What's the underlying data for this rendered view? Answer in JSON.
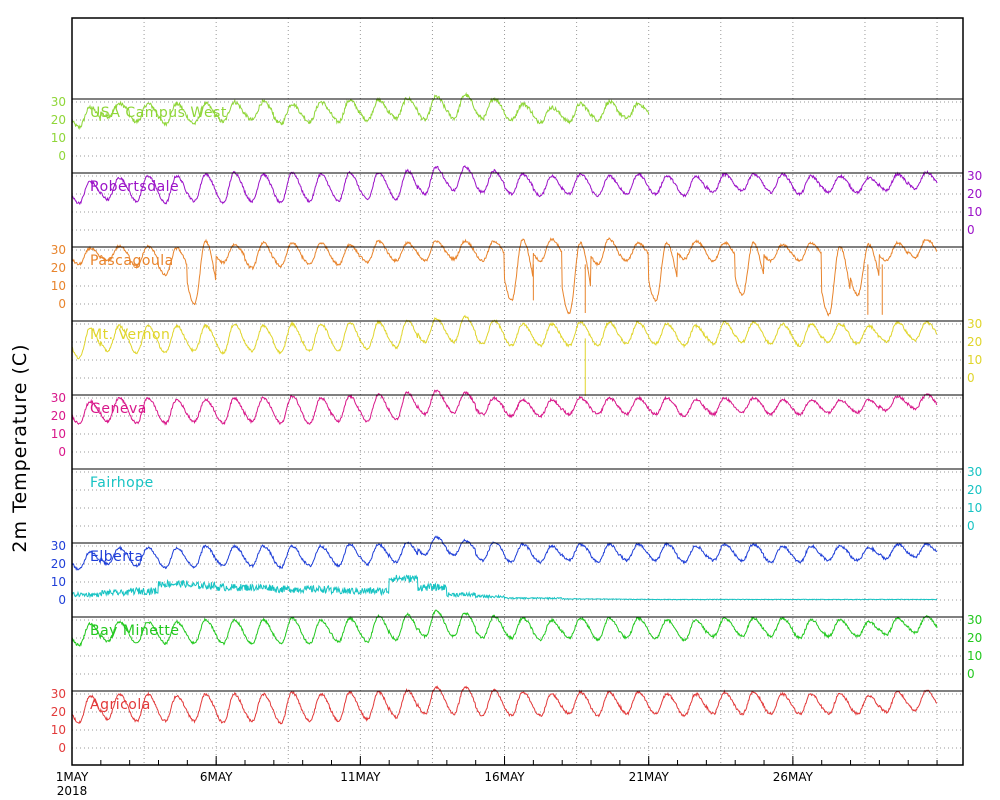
{
  "chart_data": {
    "type": "line",
    "ylabel": "2m Temperature (C)",
    "x_start": "2018-05-01",
    "x_end": "2018-05-31",
    "x_ticks": [
      {
        "date": "2018-05-01",
        "label": "1MAY",
        "sublabel": "2018"
      },
      {
        "date": "2018-05-06",
        "label": "6MAY",
        "sublabel": ""
      },
      {
        "date": "2018-05-11",
        "label": "11MAY",
        "sublabel": ""
      },
      {
        "date": "2018-05-16",
        "label": "16MAY",
        "sublabel": ""
      },
      {
        "date": "2018-05-21",
        "label": "21MAY",
        "sublabel": ""
      },
      {
        "date": "2018-05-26",
        "label": "26MAY",
        "sublabel": ""
      }
    ],
    "y_ticks": [
      0,
      10,
      20,
      30
    ],
    "grid": true,
    "panels": [
      {
        "name": "USA Campus West",
        "color": "#8fd638",
        "axis_side": "left",
        "data_end": "2018-05-21",
        "data_rough": true,
        "daily": [
          [
            16,
            27
          ],
          [
            22,
            29
          ],
          [
            19,
            29
          ],
          [
            18,
            29
          ],
          [
            18,
            29
          ],
          [
            19,
            30
          ],
          [
            20,
            30
          ],
          [
            18,
            29
          ],
          [
            19,
            30
          ],
          [
            19,
            31
          ],
          [
            20,
            31
          ],
          [
            21,
            32
          ],
          [
            20,
            33
          ],
          [
            21,
            34
          ],
          [
            21,
            32
          ],
          [
            20,
            29
          ],
          [
            19,
            27
          ],
          [
            19,
            29
          ],
          [
            20,
            30
          ],
          [
            21,
            29
          ],
          [
            21,
            30
          ]
        ]
      },
      {
        "name": "Robertsdale",
        "color": "#9b12c8",
        "axis_side": "right",
        "data_end": "2018-05-31",
        "daily": [
          [
            15,
            27
          ],
          [
            17,
            29
          ],
          [
            16,
            30
          ],
          [
            15,
            30
          ],
          [
            16,
            31
          ],
          [
            15,
            32
          ],
          [
            16,
            31
          ],
          [
            15,
            32
          ],
          [
            16,
            31
          ],
          [
            16,
            32
          ],
          [
            17,
            32
          ],
          [
            17,
            33
          ],
          [
            20,
            35
          ],
          [
            22,
            35
          ],
          [
            21,
            33
          ],
          [
            20,
            31
          ],
          [
            19,
            30
          ],
          [
            20,
            31
          ],
          [
            19,
            30
          ],
          [
            20,
            31
          ],
          [
            20,
            30
          ],
          [
            19,
            30
          ],
          [
            21,
            31
          ],
          [
            22,
            31
          ],
          [
            21,
            31
          ],
          [
            20,
            30
          ],
          [
            21,
            30
          ],
          [
            21,
            29
          ],
          [
            22,
            31
          ],
          [
            23,
            32
          ]
        ]
      },
      {
        "name": "Pascagoula",
        "color": "#e8842c",
        "axis_side": "left",
        "data_end": "2018-05-31",
        "daily": [
          [
            22,
            31
          ],
          [
            24,
            32
          ],
          [
            21,
            32
          ],
          [
            16,
            31
          ],
          [
            0,
            35
          ],
          [
            23,
            33
          ],
          [
            20,
            34
          ],
          [
            21,
            34
          ],
          [
            22,
            34
          ],
          [
            22,
            33
          ],
          [
            23,
            35
          ],
          [
            24,
            34
          ],
          [
            24,
            35
          ],
          [
            25,
            35
          ],
          [
            24,
            35
          ],
          [
            2,
            36
          ],
          [
            24,
            36
          ],
          [
            -5,
            34
          ],
          [
            22,
            36
          ],
          [
            24,
            34
          ],
          [
            2,
            34
          ],
          [
            25,
            35
          ],
          [
            24,
            34
          ],
          [
            5,
            34
          ],
          [
            24,
            33
          ],
          [
            24,
            34
          ],
          [
            -6,
            32
          ],
          [
            5,
            33
          ],
          [
            24,
            34
          ],
          [
            26,
            36
          ]
        ],
        "spikes": [
          {
            "day": 28.1,
            "value": -6
          },
          {
            "day": 27.6,
            "value": -6
          },
          {
            "day": 16.0,
            "value": 2
          },
          {
            "day": 17.8,
            "value": -5
          }
        ]
      },
      {
        "name": "Mt. Vernon",
        "color": "#e0d52c",
        "axis_side": "right",
        "data_end": "2018-05-31",
        "daily": [
          [
            11,
            28
          ],
          [
            15,
            29
          ],
          [
            14,
            29
          ],
          [
            14,
            29
          ],
          [
            15,
            29
          ],
          [
            14,
            30
          ],
          [
            15,
            29
          ],
          [
            14,
            30
          ],
          [
            15,
            30
          ],
          [
            15,
            31
          ],
          [
            16,
            31
          ],
          [
            17,
            32
          ],
          [
            20,
            33
          ],
          [
            20,
            34
          ],
          [
            19,
            32
          ],
          [
            18,
            30
          ],
          [
            18,
            30
          ],
          [
            18,
            31
          ],
          [
            18,
            31
          ],
          [
            19,
            31
          ],
          [
            19,
            30
          ],
          [
            18,
            29
          ],
          [
            19,
            31
          ],
          [
            20,
            31
          ],
          [
            19,
            30
          ],
          [
            18,
            30
          ],
          [
            20,
            30
          ],
          [
            19,
            29
          ],
          [
            20,
            31
          ],
          [
            21,
            31
          ]
        ],
        "spikes": [
          {
            "day": 17.8,
            "value": -10
          }
        ]
      },
      {
        "name": "Geneva",
        "color": "#d8178a",
        "axis_side": "left",
        "data_end": "2018-05-31",
        "daily": [
          [
            16,
            28
          ],
          [
            17,
            30
          ],
          [
            16,
            30
          ],
          [
            16,
            29
          ],
          [
            17,
            29
          ],
          [
            16,
            30
          ],
          [
            17,
            30
          ],
          [
            16,
            31
          ],
          [
            16,
            30
          ],
          [
            17,
            31
          ],
          [
            17,
            32
          ],
          [
            18,
            33
          ],
          [
            21,
            34
          ],
          [
            22,
            33
          ],
          [
            21,
            30
          ],
          [
            20,
            29
          ],
          [
            20,
            29
          ],
          [
            21,
            30
          ],
          [
            21,
            30
          ],
          [
            21,
            30
          ],
          [
            21,
            30
          ],
          [
            20,
            29
          ],
          [
            21,
            30
          ],
          [
            22,
            30
          ],
          [
            21,
            29
          ],
          [
            21,
            29
          ],
          [
            22,
            29
          ],
          [
            22,
            29
          ],
          [
            23,
            31
          ],
          [
            24,
            32
          ]
        ]
      },
      {
        "name": "Fairhope",
        "color": "#17c3c3",
        "axis_side": "right",
        "data_end": "2018-05-31",
        "daily": []
      },
      {
        "name": "Elberta",
        "color": "#1f3fd8",
        "axis_side": "left",
        "data_end": "2018-05-31",
        "daily": [
          [
            17,
            27
          ],
          [
            20,
            29
          ],
          [
            19,
            29
          ],
          [
            18,
            29
          ],
          [
            18,
            30
          ],
          [
            19,
            30
          ],
          [
            19,
            30
          ],
          [
            18,
            30
          ],
          [
            19,
            30
          ],
          [
            19,
            31
          ],
          [
            20,
            31
          ],
          [
            21,
            32
          ],
          [
            25,
            35
          ],
          [
            25,
            33
          ],
          [
            22,
            32
          ],
          [
            21,
            31
          ],
          [
            21,
            30
          ],
          [
            22,
            31
          ],
          [
            21,
            31
          ],
          [
            22,
            31
          ],
          [
            22,
            31
          ],
          [
            21,
            30
          ],
          [
            22,
            31
          ],
          [
            22,
            31
          ],
          [
            21,
            30
          ],
          [
            21,
            30
          ],
          [
            22,
            30
          ],
          [
            22,
            29
          ],
          [
            23,
            31
          ],
          [
            24,
            31
          ]
        ],
        "secondary_series": {
          "name": "Fairhope",
          "color": "#17c3c3",
          "daily_mean": [
            3,
            4,
            5,
            9,
            8,
            7,
            7,
            6,
            6,
            5,
            5,
            12,
            7,
            3,
            2,
            1,
            1,
            0.6,
            0.5,
            0.4,
            0.3,
            0.3,
            0.3,
            0.3,
            0.3,
            0.3,
            0.3,
            0.3,
            0.3,
            0.3
          ]
        }
      },
      {
        "name": "Bay Minette",
        "color": "#22c81e",
        "axis_side": "right",
        "data_end": "2018-05-31",
        "daily": [
          [
            16,
            28
          ],
          [
            18,
            29
          ],
          [
            17,
            29
          ],
          [
            17,
            29
          ],
          [
            17,
            30
          ],
          [
            17,
            30
          ],
          [
            17,
            30
          ],
          [
            17,
            31
          ],
          [
            17,
            30
          ],
          [
            18,
            31
          ],
          [
            18,
            32
          ],
          [
            19,
            33
          ],
          [
            21,
            35
          ],
          [
            21,
            34
          ],
          [
            20,
            32
          ],
          [
            20,
            31
          ],
          [
            19,
            30
          ],
          [
            20,
            31
          ],
          [
            19,
            31
          ],
          [
            20,
            31
          ],
          [
            20,
            30
          ],
          [
            19,
            30
          ],
          [
            21,
            31
          ],
          [
            21,
            31
          ],
          [
            21,
            31
          ],
          [
            20,
            30
          ],
          [
            21,
            30
          ],
          [
            21,
            29
          ],
          [
            22,
            31
          ],
          [
            23,
            32
          ]
        ]
      },
      {
        "name": "Agricola",
        "color": "#e23a3a",
        "axis_side": "left",
        "data_end": "2018-05-31",
        "daily": [
          [
            14,
            29
          ],
          [
            16,
            30
          ],
          [
            15,
            30
          ],
          [
            15,
            29
          ],
          [
            15,
            30
          ],
          [
            14,
            30
          ],
          [
            15,
            30
          ],
          [
            14,
            31
          ],
          [
            15,
            30
          ],
          [
            15,
            31
          ],
          [
            16,
            31
          ],
          [
            17,
            32
          ],
          [
            19,
            34
          ],
          [
            19,
            34
          ],
          [
            18,
            32
          ],
          [
            18,
            31
          ],
          [
            18,
            30
          ],
          [
            19,
            31
          ],
          [
            18,
            31
          ],
          [
            19,
            31
          ],
          [
            19,
            30
          ],
          [
            18,
            30
          ],
          [
            19,
            31
          ],
          [
            19,
            31
          ],
          [
            19,
            30
          ],
          [
            19,
            30
          ],
          [
            19,
            30
          ],
          [
            19,
            29
          ],
          [
            20,
            31
          ],
          [
            21,
            32
          ]
        ]
      }
    ]
  }
}
